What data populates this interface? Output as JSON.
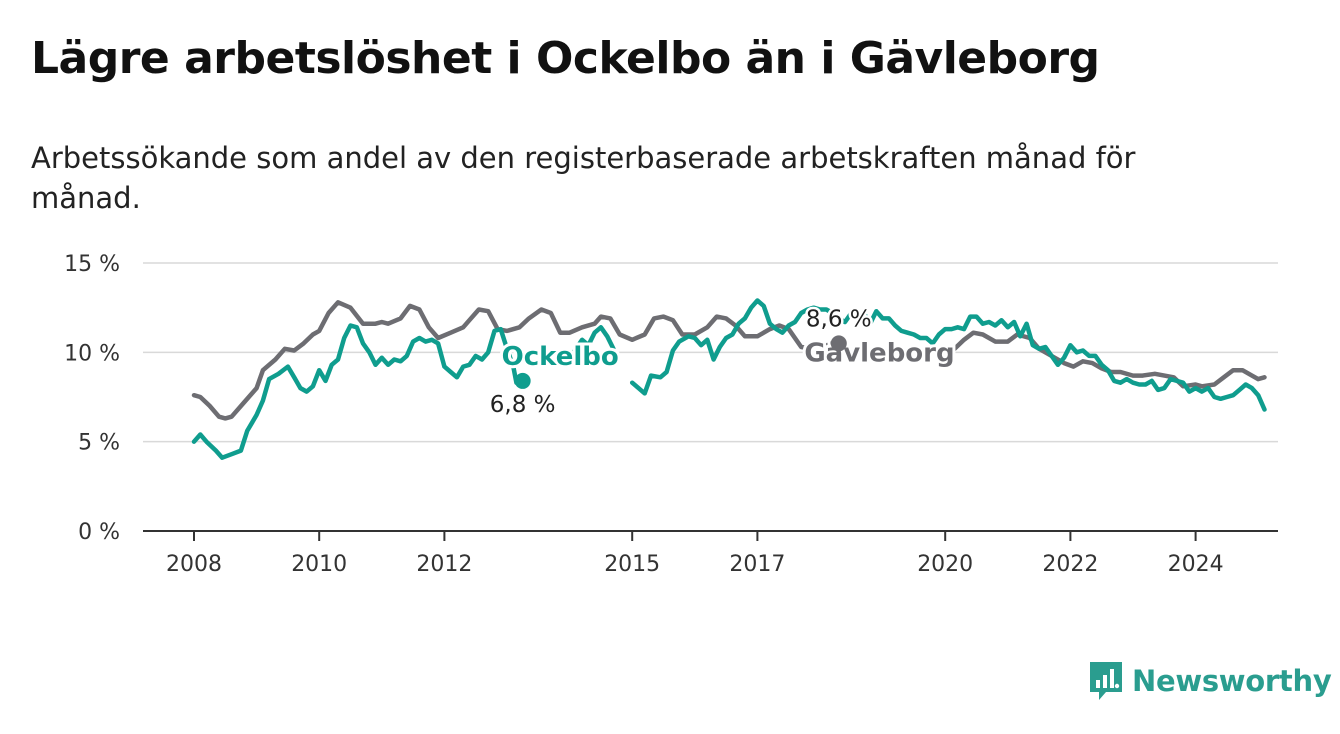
{
  "header": {
    "title": "Lägre arbetslöshet i Ockelbo än i Gävleborg",
    "subtitle": "Arbetssökande som andel av den registerbaserade arbetskraften månad för månad."
  },
  "brand": {
    "name": "Newsworthy"
  },
  "colors": {
    "ockelbo": "#0f9d8e",
    "gavleborg": "#6d6d72",
    "grid": "#d9d9d9",
    "axis": "#333333",
    "brand": "#2a9d8f"
  },
  "chart_data": {
    "type": "line",
    "ylim": [
      0,
      15
    ],
    "yticks": [
      {
        "value": 0,
        "label": "0 %"
      },
      {
        "value": 5,
        "label": "5 %"
      },
      {
        "value": 10,
        "label": "10 %"
      },
      {
        "value": 15,
        "label": "15 %"
      }
    ],
    "xlim": [
      2007.2,
      2025.1
    ],
    "xticks": [
      {
        "value": 2008,
        "label": "2008"
      },
      {
        "value": 2010,
        "label": "2010"
      },
      {
        "value": 2012,
        "label": "2012"
      },
      {
        "value": 2015,
        "label": "2015"
      },
      {
        "value": 2017,
        "label": "2017"
      },
      {
        "value": 2020,
        "label": "2020"
      },
      {
        "value": 2022,
        "label": "2022"
      },
      {
        "value": 2024,
        "label": "2024"
      }
    ],
    "grid": true,
    "series": [
      {
        "name": "Gävleborg",
        "color": "#6d6d72",
        "end_label": "8,6 %",
        "points": [
          [
            2008.0,
            7.6
          ],
          [
            2008.1,
            7.5
          ],
          [
            2008.25,
            7.0
          ],
          [
            2008.4,
            6.4
          ],
          [
            2008.5,
            6.3
          ],
          [
            2008.6,
            6.4
          ],
          [
            2008.8,
            7.2
          ],
          [
            2009.0,
            8.0
          ],
          [
            2009.1,
            9.0
          ],
          [
            2009.3,
            9.6
          ],
          [
            2009.45,
            10.2
          ],
          [
            2009.6,
            10.1
          ],
          [
            2009.75,
            10.5
          ],
          [
            2009.9,
            11.0
          ],
          [
            2010.0,
            11.2
          ],
          [
            2010.15,
            12.2
          ],
          [
            2010.3,
            12.8
          ],
          [
            2010.5,
            12.5
          ],
          [
            2010.7,
            11.6
          ],
          [
            2010.9,
            11.6
          ],
          [
            2011.0,
            11.7
          ],
          [
            2011.1,
            11.6
          ],
          [
            2011.3,
            11.9
          ],
          [
            2011.45,
            12.6
          ],
          [
            2011.6,
            12.4
          ],
          [
            2011.75,
            11.4
          ],
          [
            2011.9,
            10.8
          ],
          [
            2012.1,
            11.1
          ],
          [
            2012.3,
            11.4
          ],
          [
            2012.4,
            11.8
          ],
          [
            2012.55,
            12.4
          ],
          [
            2012.7,
            12.3
          ],
          [
            2012.85,
            11.3
          ],
          [
            2013.0,
            11.2
          ],
          [
            2013.2,
            11.4
          ],
          [
            2013.35,
            11.9
          ],
          [
            2013.55,
            12.4
          ],
          [
            2013.7,
            12.2
          ],
          [
            2013.85,
            11.1
          ],
          [
            2014.0,
            11.1
          ],
          [
            2014.2,
            11.4
          ],
          [
            2014.4,
            11.6
          ],
          [
            2014.5,
            12.0
          ],
          [
            2014.65,
            11.9
          ],
          [
            2014.8,
            11.0
          ],
          [
            2015.0,
            10.7
          ],
          [
            2015.2,
            11.0
          ],
          [
            2015.35,
            11.9
          ],
          [
            2015.5,
            12.0
          ],
          [
            2015.65,
            11.8
          ],
          [
            2015.8,
            11.0
          ],
          [
            2016.0,
            11.0
          ],
          [
            2016.2,
            11.4
          ],
          [
            2016.35,
            12.0
          ],
          [
            2016.5,
            11.9
          ],
          [
            2016.65,
            11.5
          ],
          [
            2016.8,
            10.9
          ],
          [
            2017.0,
            10.9
          ],
          [
            2017.2,
            11.3
          ],
          [
            2017.35,
            11.5
          ],
          [
            2017.5,
            11.3
          ],
          [
            2017.7,
            10.3
          ],
          [
            2017.9,
            10.2
          ],
          [
            2018.1,
            10.4
          ],
          [
            2018.3,
            10.5
          ]
        ]
      },
      {
        "name": "",
        "color": "#6d6d72",
        "points": [
          [
            2020.0,
            10.1
          ],
          [
            2020.15,
            10.2
          ],
          [
            2020.3,
            10.7
          ],
          [
            2020.45,
            11.1
          ],
          [
            2020.6,
            11.0
          ],
          [
            2020.8,
            10.6
          ],
          [
            2021.0,
            10.6
          ],
          [
            2021.15,
            11.0
          ],
          [
            2021.35,
            10.8
          ],
          [
            2021.5,
            10.2
          ],
          [
            2021.7,
            9.8
          ],
          [
            2021.9,
            9.4
          ],
          [
            2022.05,
            9.2
          ],
          [
            2022.2,
            9.5
          ],
          [
            2022.35,
            9.4
          ],
          [
            2022.5,
            9.1
          ],
          [
            2022.65,
            8.9
          ],
          [
            2022.8,
            8.9
          ],
          [
            2023.0,
            8.7
          ],
          [
            2023.15,
            8.7
          ],
          [
            2023.35,
            8.8
          ],
          [
            2023.5,
            8.7
          ],
          [
            2023.65,
            8.6
          ],
          [
            2023.8,
            8.1
          ],
          [
            2024.0,
            8.2
          ],
          [
            2024.1,
            8.1
          ],
          [
            2024.3,
            8.2
          ],
          [
            2024.45,
            8.6
          ],
          [
            2024.6,
            9.0
          ],
          [
            2024.75,
            9.0
          ],
          [
            2024.9,
            8.7
          ],
          [
            2025.0,
            8.5
          ],
          [
            2025.1,
            8.6
          ]
        ]
      },
      {
        "name": "Ockelbo",
        "color": "#0f9d8e",
        "end_label": "6,8 %",
        "points": [
          [
            2008.0,
            5.0
          ],
          [
            2008.1,
            5.4
          ],
          [
            2008.2,
            5.0
          ],
          [
            2008.35,
            4.5
          ],
          [
            2008.45,
            4.1
          ],
          [
            2008.6,
            4.3
          ],
          [
            2008.75,
            4.5
          ],
          [
            2008.85,
            5.6
          ],
          [
            2009.0,
            6.5
          ],
          [
            2009.1,
            7.3
          ],
          [
            2009.2,
            8.5
          ],
          [
            2009.35,
            8.8
          ],
          [
            2009.5,
            9.2
          ],
          [
            2009.6,
            8.6
          ],
          [
            2009.7,
            8.0
          ],
          [
            2009.8,
            7.8
          ],
          [
            2009.9,
            8.1
          ],
          [
            2010.0,
            9.0
          ],
          [
            2010.1,
            8.4
          ],
          [
            2010.2,
            9.3
          ],
          [
            2010.3,
            9.6
          ],
          [
            2010.4,
            10.8
          ],
          [
            2010.5,
            11.5
          ],
          [
            2010.6,
            11.4
          ],
          [
            2010.7,
            10.5
          ],
          [
            2010.8,
            10.0
          ],
          [
            2010.9,
            9.3
          ],
          [
            2011.0,
            9.7
          ],
          [
            2011.1,
            9.3
          ],
          [
            2011.2,
            9.6
          ],
          [
            2011.3,
            9.5
          ],
          [
            2011.4,
            9.8
          ],
          [
            2011.5,
            10.6
          ],
          [
            2011.6,
            10.8
          ],
          [
            2011.7,
            10.6
          ],
          [
            2011.8,
            10.7
          ],
          [
            2011.9,
            10.5
          ],
          [
            2012.0,
            9.2
          ],
          [
            2012.1,
            8.9
          ],
          [
            2012.2,
            8.6
          ],
          [
            2012.3,
            9.2
          ],
          [
            2012.4,
            9.3
          ],
          [
            2012.5,
            9.8
          ],
          [
            2012.6,
            9.6
          ],
          [
            2012.7,
            10.0
          ],
          [
            2012.8,
            11.2
          ],
          [
            2012.9,
            11.3
          ],
          [
            2013.0,
            10.2
          ],
          [
            2013.1,
            9.2
          ],
          [
            2013.15,
            8.3
          ],
          [
            2013.25,
            8.4
          ]
        ]
      },
      {
        "name": "",
        "color": "#0f9d8e",
        "points": [
          [
            2014.0,
            9.7
          ],
          [
            2014.1,
            10.2
          ],
          [
            2014.2,
            10.7
          ],
          [
            2014.3,
            10.4
          ],
          [
            2014.4,
            11.1
          ],
          [
            2014.5,
            11.4
          ],
          [
            2014.6,
            10.9
          ],
          [
            2014.7,
            10.2
          ]
        ]
      },
      {
        "name": "",
        "color": "#0f9d8e",
        "points": [
          [
            2015.0,
            8.3
          ],
          [
            2015.1,
            8.0
          ],
          [
            2015.2,
            7.7
          ],
          [
            2015.3,
            8.7
          ],
          [
            2015.45,
            8.6
          ],
          [
            2015.55,
            8.9
          ],
          [
            2015.65,
            10.1
          ],
          [
            2015.75,
            10.6
          ],
          [
            2015.9,
            10.9
          ],
          [
            2016.0,
            10.8
          ],
          [
            2016.1,
            10.4
          ],
          [
            2016.2,
            10.7
          ],
          [
            2016.3,
            9.6
          ],
          [
            2016.4,
            10.3
          ],
          [
            2016.5,
            10.8
          ],
          [
            2016.6,
            11.0
          ],
          [
            2016.7,
            11.6
          ],
          [
            2016.8,
            11.9
          ],
          [
            2016.9,
            12.5
          ],
          [
            2017.0,
            12.9
          ],
          [
            2017.1,
            12.6
          ],
          [
            2017.2,
            11.6
          ],
          [
            2017.3,
            11.3
          ],
          [
            2017.4,
            11.1
          ],
          [
            2017.5,
            11.5
          ],
          [
            2017.6,
            11.7
          ],
          [
            2017.7,
            12.2
          ],
          [
            2017.8,
            12.4
          ],
          [
            2017.9,
            12.5
          ],
          [
            2018.0,
            12.4
          ],
          [
            2018.1,
            12.4
          ],
          [
            2018.2,
            12.2
          ],
          [
            2018.3,
            11.9
          ],
          [
            2018.4,
            11.7
          ],
          [
            2018.5,
            12.2
          ],
          [
            2018.6,
            12.1
          ],
          [
            2018.7,
            12.2
          ],
          [
            2018.8,
            11.6
          ],
          [
            2018.9,
            12.3
          ],
          [
            2019.0,
            11.9
          ],
          [
            2019.1,
            11.9
          ],
          [
            2019.2,
            11.5
          ],
          [
            2019.3,
            11.2
          ],
          [
            2019.4,
            11.1
          ],
          [
            2019.5,
            11.0
          ],
          [
            2019.6,
            10.8
          ],
          [
            2019.7,
            10.8
          ],
          [
            2019.8,
            10.5
          ],
          [
            2019.9,
            11.0
          ],
          [
            2020.0,
            11.3
          ],
          [
            2020.1,
            11.3
          ],
          [
            2020.2,
            11.4
          ],
          [
            2020.3,
            11.3
          ],
          [
            2020.4,
            12.0
          ],
          [
            2020.5,
            12.0
          ],
          [
            2020.6,
            11.6
          ],
          [
            2020.7,
            11.7
          ],
          [
            2020.8,
            11.5
          ],
          [
            2020.9,
            11.8
          ],
          [
            2021.0,
            11.4
          ],
          [
            2021.1,
            11.7
          ],
          [
            2021.2,
            10.9
          ],
          [
            2021.3,
            11.6
          ],
          [
            2021.4,
            10.4
          ],
          [
            2021.5,
            10.2
          ],
          [
            2021.6,
            10.3
          ],
          [
            2021.7,
            9.8
          ],
          [
            2021.8,
            9.3
          ],
          [
            2021.9,
            9.7
          ],
          [
            2022.0,
            10.4
          ],
          [
            2022.1,
            10.0
          ],
          [
            2022.2,
            10.1
          ],
          [
            2022.3,
            9.8
          ],
          [
            2022.4,
            9.8
          ],
          [
            2022.5,
            9.3
          ],
          [
            2022.6,
            9.0
          ],
          [
            2022.7,
            8.4
          ],
          [
            2022.8,
            8.3
          ],
          [
            2022.9,
            8.5
          ],
          [
            2023.0,
            8.3
          ],
          [
            2023.1,
            8.2
          ],
          [
            2023.2,
            8.2
          ],
          [
            2023.3,
            8.4
          ],
          [
            2023.4,
            7.9
          ],
          [
            2023.5,
            8.0
          ],
          [
            2023.6,
            8.5
          ],
          [
            2023.7,
            8.4
          ],
          [
            2023.8,
            8.3
          ],
          [
            2023.9,
            7.8
          ],
          [
            2024.0,
            8.0
          ],
          [
            2024.1,
            7.8
          ],
          [
            2024.2,
            8.0
          ],
          [
            2024.3,
            7.5
          ],
          [
            2024.4,
            7.4
          ],
          [
            2024.5,
            7.5
          ],
          [
            2024.6,
            7.6
          ],
          [
            2024.7,
            7.9
          ],
          [
            2024.8,
            8.2
          ],
          [
            2024.9,
            8.0
          ],
          [
            2025.0,
            7.6
          ],
          [
            2025.1,
            6.8
          ]
        ]
      }
    ],
    "annotations": [
      {
        "text": "Ockelbo",
        "series": "Ockelbo",
        "x": 2013.85,
        "y": 9.3
      },
      {
        "text": "Gävleborg",
        "series": "Gävleborg",
        "x": 2018.95,
        "y": 9.5
      }
    ]
  }
}
